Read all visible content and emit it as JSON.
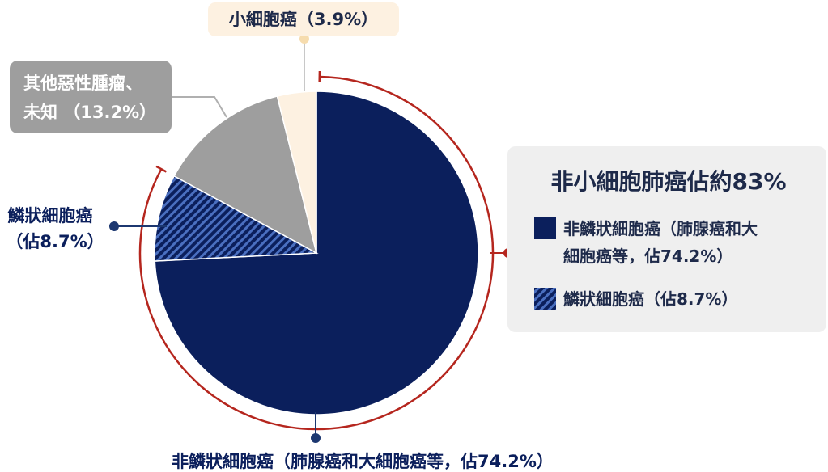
{
  "chart_data": {
    "type": "pie",
    "slices": [
      {
        "name": "非鱗狀細胞癌（肺腺癌和大細胞癌等，佔74.2%）",
        "value": 74.2,
        "color": "#0b1f5c",
        "pattern": "solid"
      },
      {
        "name": "鱗狀細胞癌（佔8.7%）",
        "value": 8.7,
        "color": "#1f3a86",
        "pattern": "hatched"
      },
      {
        "name": "其他惡性腫瘤、未知 （13.2%）",
        "value": 13.2,
        "color": "#9e9e9e",
        "pattern": "solid"
      },
      {
        "name": "小細胞癌（3.9%）",
        "value": 3.9,
        "color": "#fdf1e1",
        "pattern": "solid"
      }
    ]
  },
  "labels": {
    "small_cell": "小細胞癌（3.9%）",
    "other_line1": "其他惡性腫瘤、",
    "other_line2": "未知 （13.2%）",
    "squamous_line1": "鱗狀細胞癌",
    "squamous_line2": "（佔8.7%）",
    "nonsquamous_bottom": "非鱗狀細胞癌（肺腺癌和大細胞癌等，佔74.2%）"
  },
  "legend": {
    "title": "非小細胞肺癌佔約83%",
    "item1_line1": "非鱗狀細胞癌（肺腺癌和大",
    "item1_line2": "細胞癌等，佔74.2%）",
    "item2": "鱗狀細胞癌（佔8.7%）"
  },
  "colors": {
    "navy": "#0b1f5c",
    "hatch_blue": "#4a6fc0",
    "gray": "#9e9e9e",
    "cream": "#fdf1e1",
    "accent_red": "#b5261e",
    "dot_navy": "#1c3770",
    "legend_bg": "#efefef",
    "text_dark": "#1e2a4a"
  }
}
